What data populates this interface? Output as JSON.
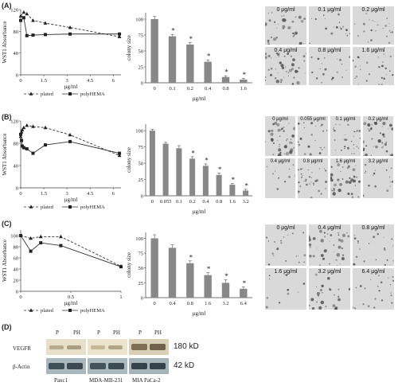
{
  "panels": [
    {
      "letter": "(A)",
      "line_chart": {
        "ylabel": "WST1 Absorbance",
        "xlabel": "μg/ml",
        "xticks": [
          "0",
          "1.5",
          "3",
          "4.5",
          "6"
        ],
        "yticks": [
          "0",
          "40",
          "80",
          "120"
        ],
        "legend": [
          "plated",
          "polyHEMA"
        ]
      },
      "bar_chart": {
        "ylabel": "colony size",
        "xlabel": "μg/ml",
        "categories": [
          "0",
          "0.1",
          "0.2",
          "0.4",
          "0.8",
          "1.6"
        ],
        "yticks": [
          "0",
          "25",
          "50",
          "75",
          "100"
        ],
        "sig_label": "*"
      },
      "micrographs": [
        "0 μg/ml",
        "0.1 μg/ml",
        "0.2 μg/ml",
        "0.4 μg/ml",
        "0.8 μg/ml",
        "1.6 μg/ml"
      ]
    },
    {
      "letter": "(B)",
      "line_chart": {
        "ylabel": "WST1 Absorbance",
        "xlabel": "μg/ml",
        "xticks": [
          "0",
          "1.5",
          "3",
          "4.5",
          "6"
        ],
        "yticks": [
          "0",
          "40",
          "80",
          "120"
        ],
        "legend": [
          "plated",
          "polyHEMA"
        ]
      },
      "bar_chart": {
        "ylabel": "colony size",
        "xlabel": "μg/ml",
        "categories": [
          "0",
          "0.055",
          "0.1",
          "0.2",
          "0.4",
          "0.8",
          "1.6",
          "3.2"
        ],
        "yticks": [
          "0",
          "25",
          "50",
          "75",
          "100"
        ],
        "sig_label": "*"
      },
      "micrographs": [
        "0 μg/ml",
        "0.055 μg/ml",
        "0.1 μg/ml",
        "0.2 μg/ml",
        "0.4 μg/ml",
        "0.8 μg/ml",
        "1.6 μg/ml",
        "3.2 μg/ml"
      ]
    },
    {
      "letter": "(C)",
      "line_chart": {
        "ylabel": "WST1 Absorbance",
        "xlabel": "μg/ml",
        "xticks": [
          "0",
          "0.5",
          "1"
        ],
        "yticks": [
          "0",
          "20",
          "40",
          "60",
          "80",
          "100"
        ],
        "legend": [
          "plated",
          "polyHEMA"
        ]
      },
      "bar_chart": {
        "ylabel": "colony size",
        "xlabel": "μg/ml",
        "categories": [
          "0",
          "0.4",
          "0.8",
          "1.6",
          "3.2",
          "6.4"
        ],
        "yticks": [
          "0",
          "25",
          "50",
          "75",
          "100"
        ],
        "sig_label": "*"
      },
      "micrographs": [
        "0 μg/ml",
        "0.4 μg/ml",
        "0.8 μg/ml",
        "1.6 μg/ml",
        "3.2 μg/ml",
        "6.4 μg/ml"
      ]
    }
  ],
  "western_blot": {
    "letter": "(D)",
    "lane_headers": [
      "P",
      "PH",
      "P",
      "PH",
      "P",
      "PH"
    ],
    "rows": [
      {
        "label": "VEGFR",
        "size": "180 kD"
      },
      {
        "label": "β-Actin",
        "size": "42 kD"
      }
    ],
    "cell_lines": [
      "Panc1",
      "MDA-MB-231",
      "MIA PaCa-2"
    ]
  },
  "chart_data": [
    {
      "type": "line",
      "panel": "A",
      "ylabel": "WST1 Absorbance",
      "xlabel": "μg/ml",
      "xlim": [
        0,
        6.5
      ],
      "ylim": [
        0,
        120
      ],
      "series": [
        {
          "name": "plated",
          "x": [
            0,
            0.2,
            0.4,
            0.8,
            1.6,
            3.2,
            6.4
          ],
          "y": [
            108,
            115,
            112,
            100,
            95,
            87,
            70
          ]
        },
        {
          "name": "polyHEMA",
          "x": [
            0,
            0.2,
            0.4,
            0.8,
            1.6,
            3.2,
            6.4
          ],
          "y": [
            100,
            105,
            72,
            73,
            74,
            75,
            75
          ]
        }
      ]
    },
    {
      "type": "bar",
      "panel": "A",
      "ylabel": "colony size",
      "xlabel": "μg/ml",
      "ylim": [
        0,
        110
      ],
      "categories": [
        "0",
        "0.1",
        "0.2",
        "0.4",
        "0.8",
        "1.6"
      ],
      "values": [
        100,
        73,
        60,
        33,
        9,
        5
      ],
      "errors": [
        4,
        3,
        3,
        3,
        2,
        2
      ],
      "significant": [
        false,
        true,
        true,
        true,
        true,
        true
      ]
    },
    {
      "type": "line",
      "panel": "B",
      "ylabel": "WST1 Absorbance",
      "xlabel": "μg/ml",
      "xlim": [
        0,
        6.5
      ],
      "ylim": [
        0,
        120
      ],
      "series": [
        {
          "name": "plated",
          "x": [
            0,
            0.055,
            0.1,
            0.2,
            0.4,
            0.8,
            1.6,
            3.2,
            6.4
          ],
          "y": [
            92,
            100,
            104,
            108,
            112,
            110,
            108,
            95,
            58
          ]
        },
        {
          "name": "polyHEMA",
          "x": [
            0,
            0.055,
            0.1,
            0.2,
            0.4,
            0.8,
            1.6,
            3.2,
            6.4
          ],
          "y": [
            96,
            85,
            75,
            72,
            70,
            62,
            77,
            83,
            62
          ]
        }
      ]
    },
    {
      "type": "bar",
      "panel": "B",
      "ylabel": "colony size",
      "xlabel": "μg/ml",
      "ylim": [
        0,
        110
      ],
      "categories": [
        "0",
        "0.055",
        "0.1",
        "0.2",
        "0.4",
        "0.8",
        "1.6",
        "3.2"
      ],
      "values": [
        100,
        80,
        73,
        57,
        46,
        32,
        17,
        8
      ],
      "errors": [
        2,
        2,
        4,
        3,
        3,
        3,
        2,
        2
      ],
      "significant": [
        false,
        false,
        false,
        true,
        true,
        true,
        true,
        true
      ]
    },
    {
      "type": "line",
      "panel": "C",
      "ylabel": "WST1 Absorbance",
      "xlabel": "μg/ml",
      "xlim": [
        0,
        1
      ],
      "ylim": [
        0,
        110
      ],
      "series": [
        {
          "name": "plated",
          "x": [
            0,
            0.1,
            0.2,
            0.4,
            1.0
          ],
          "y": [
            100,
            95,
            98,
            98,
            45
          ]
        },
        {
          "name": "polyHEMA",
          "x": [
            0,
            0.1,
            0.2,
            0.4,
            1.0
          ],
          "y": [
            100,
            72,
            87,
            82,
            44
          ]
        }
      ]
    },
    {
      "type": "bar",
      "panel": "C",
      "ylabel": "colony size",
      "xlabel": "μg/ml",
      "ylim": [
        0,
        110
      ],
      "categories": [
        "0",
        "0.4",
        "0.8",
        "1.6",
        "3.2",
        "6.4"
      ],
      "values": [
        100,
        84,
        58,
        38,
        25,
        15
      ],
      "errors": [
        6,
        5,
        4,
        4,
        5,
        3
      ],
      "significant": [
        false,
        false,
        true,
        true,
        true,
        true
      ]
    }
  ]
}
